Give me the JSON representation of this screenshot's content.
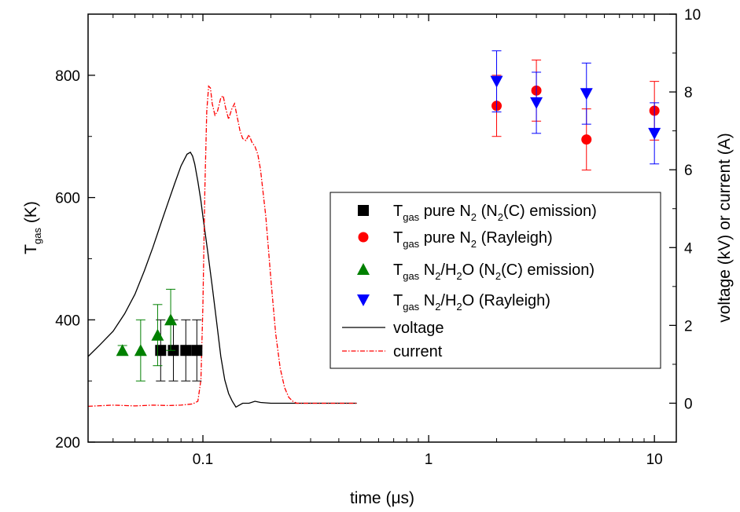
{
  "chart_data": {
    "type": "scatter",
    "xscale": "log",
    "xlim": [
      0.031,
      12.5
    ],
    "xlabel_text": "time (",
    "xlabel_mu": "μ",
    "xlabel_unit": "s)",
    "xticks": [
      0.1,
      1,
      10
    ],
    "xtick_labels": [
      "0.1",
      "1",
      "10"
    ],
    "y_left": {
      "label_main": "T",
      "label_sub": "gas",
      "label_unit": " (K)",
      "lim": [
        200,
        900
      ],
      "ticks": [
        200,
        400,
        600,
        800
      ],
      "tick_labels": [
        "200",
        "400",
        "600",
        "800"
      ]
    },
    "y_right": {
      "label": "voltage (kV) or current (A)",
      "lim": [
        -1,
        10
      ],
      "ticks": [
        0,
        2,
        4,
        6,
        8,
        10
      ],
      "tick_labels": [
        "0",
        "2",
        "4",
        "6",
        "8",
        "10"
      ]
    },
    "series": [
      {
        "name": "T_gas pure N2 (N2(C) emission)",
        "axis": "left",
        "marker": "square",
        "color": "#000000",
        "points": [
          {
            "x": 0.065,
            "y": 350,
            "err": 50
          },
          {
            "x": 0.074,
            "y": 350,
            "err": 50
          },
          {
            "x": 0.084,
            "y": 350,
            "err": 50
          },
          {
            "x": 0.094,
            "y": 350,
            "err": 50
          }
        ]
      },
      {
        "name": "T_gas pure N2 (Rayleigh)",
        "axis": "left",
        "marker": "circle",
        "color": "#ff0000",
        "points": [
          {
            "x": 2,
            "y": 750,
            "err": 50
          },
          {
            "x": 3,
            "y": 775,
            "err": 50
          },
          {
            "x": 5,
            "y": 695,
            "err": 50
          },
          {
            "x": 10,
            "y": 742,
            "err": 48
          }
        ]
      },
      {
        "name": "T_gas N2/H2O (N2(C) emission)",
        "axis": "left",
        "marker": "triangle-up",
        "color": "#008000",
        "points": [
          {
            "x": 0.044,
            "y": 350,
            "err": 8
          },
          {
            "x": 0.053,
            "y": 350,
            "err": 50
          },
          {
            "x": 0.063,
            "y": 375,
            "err": 50
          },
          {
            "x": 0.072,
            "y": 400,
            "err": 50
          }
        ]
      },
      {
        "name": "T_gas N2/H2O (Rayleigh)",
        "axis": "left",
        "marker": "triangle-down",
        "color": "#0000ff",
        "points": [
          {
            "x": 2,
            "y": 790,
            "err": 50
          },
          {
            "x": 3,
            "y": 755,
            "err": 50
          },
          {
            "x": 5,
            "y": 770,
            "err": 50
          },
          {
            "x": 10,
            "y": 705,
            "err": 50
          }
        ]
      },
      {
        "name": "voltage",
        "axis": "right",
        "line": "solid",
        "color": "#000000",
        "x": [
          0.031,
          0.035,
          0.04,
          0.045,
          0.05,
          0.055,
          0.06,
          0.065,
          0.07,
          0.075,
          0.08,
          0.085,
          0.088,
          0.09,
          0.092,
          0.095,
          0.098,
          0.1,
          0.105,
          0.11,
          0.115,
          0.12,
          0.125,
          0.13,
          0.135,
          0.14,
          0.145,
          0.15,
          0.16,
          0.17,
          0.18,
          0.2,
          0.3,
          0.48
        ],
        "y": [
          1.2,
          1.5,
          1.85,
          2.3,
          2.8,
          3.4,
          4.0,
          4.6,
          5.15,
          5.65,
          6.1,
          6.4,
          6.45,
          6.35,
          6.15,
          5.7,
          5.2,
          4.8,
          3.9,
          3.0,
          2.1,
          1.2,
          0.6,
          0.25,
          0.05,
          -0.1,
          -0.05,
          0.0,
          0.0,
          0.05,
          0.02,
          0.0,
          0.0,
          0.0
        ]
      },
      {
        "name": "current",
        "axis": "right",
        "line": "dashdot",
        "color": "#ff0000",
        "x": [
          0.031,
          0.04,
          0.05,
          0.06,
          0.07,
          0.08,
          0.09,
          0.095,
          0.098,
          0.1,
          0.102,
          0.104,
          0.106,
          0.108,
          0.11,
          0.113,
          0.116,
          0.12,
          0.123,
          0.126,
          0.13,
          0.134,
          0.138,
          0.142,
          0.146,
          0.15,
          0.155,
          0.16,
          0.165,
          0.17,
          0.175,
          0.18,
          0.19,
          0.2,
          0.21,
          0.22,
          0.23,
          0.24,
          0.25,
          0.26,
          0.27,
          0.3,
          0.4,
          0.48
        ],
        "y": [
          -0.08,
          -0.05,
          -0.07,
          -0.05,
          -0.06,
          -0.05,
          -0.02,
          0.05,
          0.6,
          2.5,
          5.5,
          7.5,
          8.15,
          8.1,
          7.7,
          7.4,
          7.5,
          7.85,
          7.9,
          7.6,
          7.3,
          7.55,
          7.7,
          7.35,
          7.0,
          6.8,
          6.75,
          6.9,
          6.7,
          6.6,
          6.4,
          6.0,
          4.8,
          3.2,
          1.8,
          0.9,
          0.4,
          0.15,
          0.05,
          0.0,
          0.0,
          0.0,
          0.0,
          0.0
        ]
      }
    ],
    "legend": {
      "position": "center-right",
      "items": [
        {
          "main": "T",
          "sub": "gas",
          "rest1": " pure N",
          "sub2": "2",
          "rest2": " (N",
          "sub3": "2",
          "rest3": "(C) emission)"
        },
        {
          "main": "T",
          "sub": "gas",
          "rest1": " pure N",
          "sub2": "2",
          "rest2": " (Rayleigh)",
          "sub3": "",
          "rest3": ""
        },
        {
          "main": "T",
          "sub": "gas",
          "rest1": " N",
          "sub2": "2",
          "rest2": "/H",
          "sub3": "2",
          "rest3": "O (N",
          "sub4": "2",
          "rest4": "(C) emission)"
        },
        {
          "main": "T",
          "sub": "gas",
          "rest1": " N",
          "sub2": "2",
          "rest2": "/H",
          "sub3": "2",
          "rest3": "O (Rayleigh)"
        },
        {
          "main": "voltage"
        },
        {
          "main": "current"
        }
      ]
    }
  }
}
